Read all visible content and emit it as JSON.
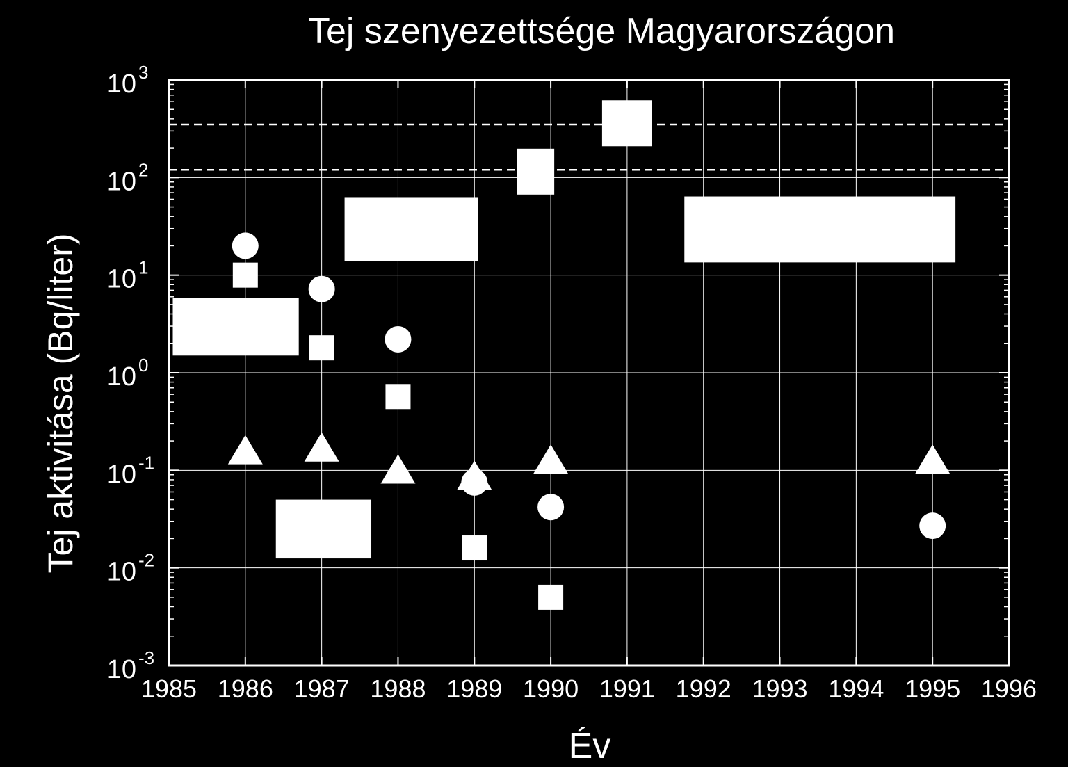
{
  "chart_data": {
    "type": "scatter",
    "title": "Tej szenyezettsége Magyarországon",
    "xlabel": "Év",
    "ylabel": "Tej aktivitása (Bq/liter)",
    "xlim": [
      1985,
      1996
    ],
    "ylim": [
      0.001,
      1000
    ],
    "yscale": "log",
    "grid": true,
    "x_ticks": [
      "1985",
      "1986",
      "1987",
      "1988",
      "1989",
      "1990",
      "1991",
      "1992",
      "1993",
      "1994",
      "1995",
      "1996"
    ],
    "y_ticks": [
      {
        "base": "10",
        "exp": "-3"
      },
      {
        "base": "10",
        "exp": "-2"
      },
      {
        "base": "10",
        "exp": "-1"
      },
      {
        "base": "10",
        "exp": "0"
      },
      {
        "base": "10",
        "exp": "1"
      },
      {
        "base": "10",
        "exp": "2"
      },
      {
        "base": "10",
        "exp": "3"
      }
    ],
    "reference_lines": [
      350,
      120
    ],
    "series": [
      {
        "marker": "circle",
        "points": [
          [
            1986,
            20
          ],
          [
            1987,
            7.2
          ],
          [
            1988,
            2.2
          ],
          [
            1989,
            0.075
          ],
          [
            1990,
            0.042
          ],
          [
            1995,
            0.027
          ]
        ]
      },
      {
        "marker": "square",
        "points": [
          [
            1986,
            10
          ],
          [
            1987,
            1.8
          ],
          [
            1988,
            0.57
          ],
          [
            1989,
            0.016
          ],
          [
            1990,
            0.005
          ]
        ]
      },
      {
        "marker": "triangle",
        "points": [
          [
            1986,
            0.15
          ],
          [
            1987,
            0.16
          ],
          [
            1988,
            0.095
          ],
          [
            1989,
            0.082
          ],
          [
            1990,
            0.12
          ],
          [
            1995,
            0.12
          ]
        ]
      },
      {
        "marker": "large-square",
        "points": [
          [
            1989.8,
            115
          ],
          [
            1991,
            360
          ]
        ]
      }
    ],
    "ranges": [
      {
        "x": [
          1985.05,
          1986.7
        ],
        "y": [
          1.5,
          5.8
        ]
      },
      {
        "x": [
          1987.3,
          1989.05
        ],
        "y": [
          14,
          62
        ]
      },
      {
        "x": [
          1986.4,
          1987.65
        ],
        "y": [
          0.0125,
          0.05
        ]
      },
      {
        "x": [
          1991.75,
          1995.3
        ],
        "y": [
          13.5,
          64
        ]
      }
    ],
    "colors": {
      "background": "#000000",
      "foreground": "#ffffff"
    }
  }
}
